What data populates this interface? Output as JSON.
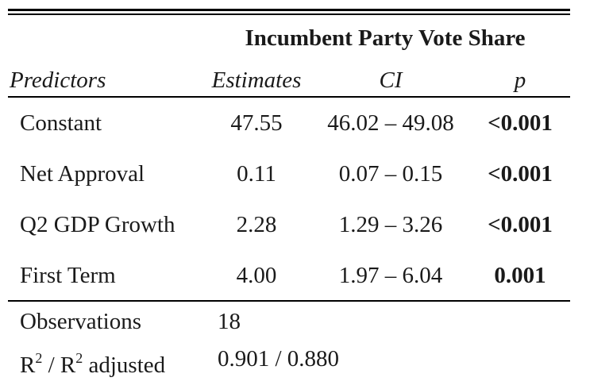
{
  "table": {
    "dependent_variable": "Incumbent Party Vote Share",
    "headers": {
      "predictors": "Predictors",
      "estimates": "Estimates",
      "ci": "CI",
      "p": "p"
    },
    "rows": [
      {
        "predictor": "Constant",
        "estimate": "47.55",
        "ci": "46.02 – 49.08",
        "p": "<0.001"
      },
      {
        "predictor": "Net Approval",
        "estimate": "0.11",
        "ci": "0.07 – 0.15",
        "p": "<0.001"
      },
      {
        "predictor": "Q2 GDP Growth",
        "estimate": "2.28",
        "ci": "1.29 – 3.26",
        "p": "<0.001"
      },
      {
        "predictor": "First Term",
        "estimate": "4.00",
        "ci": "1.97 – 6.04",
        "p": "0.001"
      }
    ],
    "footer": {
      "observations_label": "Observations",
      "observations_value": "18",
      "r2_label": {
        "r": "R",
        "sup": "2",
        "sep": " / ",
        "r_adj": "R",
        "sup_adj": "2",
        "suffix": " adjusted"
      },
      "r2_value": "0.901 / 0.880"
    }
  }
}
